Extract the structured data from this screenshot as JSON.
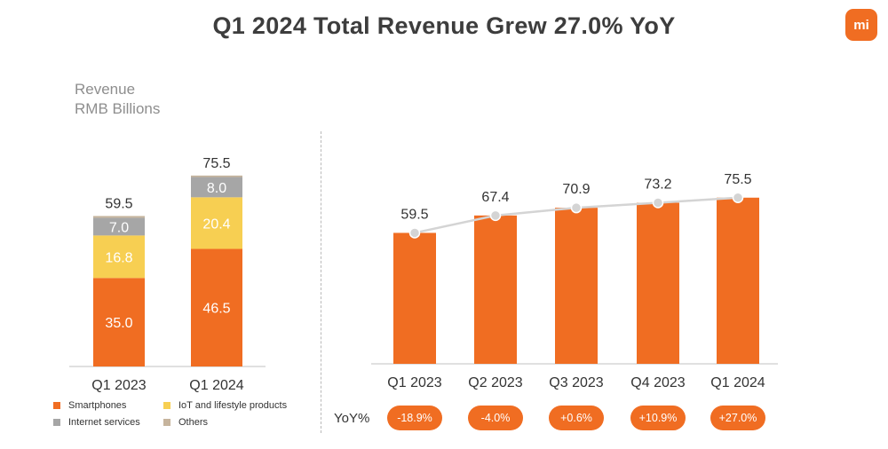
{
  "page": {
    "title": "Q1 2024 Total Revenue Grew 27.0% YoY",
    "logo_text": "mi",
    "unit_line1": "Revenue",
    "unit_line2": "RMB Billions",
    "yoy_label": "YoY%"
  },
  "colors": {
    "smartphones": "#f06d22",
    "iot": "#f7cf52",
    "internet": "#a6a6a6",
    "others": "#c6b49d",
    "line": "#d4d4d4"
  },
  "legend": [
    {
      "label": "Smartphones",
      "color": "#f06d22"
    },
    {
      "label": "IoT and lifestyle products",
      "color": "#f7cf52"
    },
    {
      "label": "Internet services",
      "color": "#a6a6a6"
    },
    {
      "label": "Others",
      "color": "#c6b49d"
    }
  ],
  "chart_data": [
    {
      "type": "bar",
      "stacked": true,
      "title": "",
      "ylabel": "Revenue RMB Billions",
      "categories": [
        "Q1 2023",
        "Q1 2024"
      ],
      "totals": [
        59.5,
        75.5
      ],
      "series": [
        {
          "name": "Smartphones",
          "values": [
            35.0,
            46.5
          ],
          "labels": [
            "35.0",
            "46.5"
          ]
        },
        {
          "name": "IoT and lifestyle products",
          "values": [
            16.8,
            20.4
          ],
          "labels": [
            "16.8",
            "20.4"
          ]
        },
        {
          "name": "Internet services",
          "values": [
            7.0,
            8.0
          ],
          "labels": [
            "7.0",
            "8.0"
          ]
        },
        {
          "name": "Others",
          "values": [
            0.7,
            0.6
          ],
          "labels": [
            "",
            ""
          ]
        }
      ],
      "total_labels": [
        "59.5",
        "75.5"
      ],
      "legend_position": "bottom"
    },
    {
      "type": "bar",
      "title": "",
      "categories": [
        "Q1 2023",
        "Q2 2023",
        "Q3 2023",
        "Q4 2023",
        "Q1 2024"
      ],
      "values": [
        59.5,
        67.4,
        70.9,
        73.2,
        75.5
      ],
      "value_labels": [
        "59.5",
        "67.4",
        "70.9",
        "73.2",
        "75.5"
      ],
      "trend_line": true,
      "yoy": [
        "-18.9%",
        "-4.0%",
        "+0.6%",
        "+10.9%",
        "+27.0%"
      ]
    }
  ]
}
